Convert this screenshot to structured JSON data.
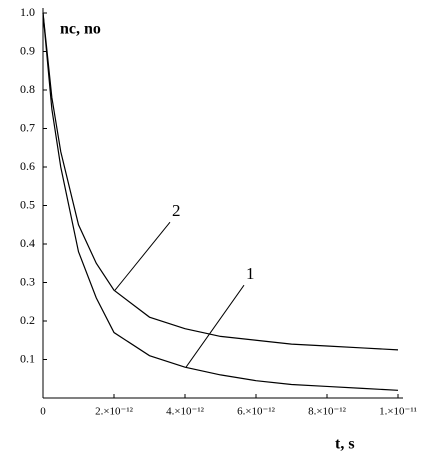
{
  "chart_data": {
    "type": "line",
    "y_label": "nc, no",
    "x_label": "t, s",
    "x": [
      0,
      2.5e-13,
      5e-13,
      1e-12,
      1.5e-12,
      2e-12,
      3e-12,
      4e-12,
      5e-12,
      6e-12,
      7e-12,
      8e-12,
      9e-12,
      1e-11
    ],
    "series": [
      {
        "name": "1",
        "color": "#000000",
        "values": [
          1.0,
          0.75,
          0.6,
          0.38,
          0.26,
          0.17,
          0.11,
          0.08,
          0.06,
          0.045,
          0.035,
          0.03,
          0.025,
          0.02
        ]
      },
      {
        "name": "2",
        "color": "#000000",
        "values": [
          1.0,
          0.78,
          0.64,
          0.45,
          0.35,
          0.28,
          0.21,
          0.18,
          0.16,
          0.15,
          0.14,
          0.135,
          0.13,
          0.125
        ]
      }
    ],
    "xlim": [
      0,
      1e-11
    ],
    "ylim": [
      0,
      1
    ],
    "xticks": [
      0,
      {
        "value": 2e-12,
        "label": "2.×10⁻¹²"
      },
      {
        "value": 4e-12,
        "label": "4.×10⁻¹²"
      },
      {
        "value": 6e-12,
        "label": "6.×10⁻¹²"
      },
      {
        "value": 8e-12,
        "label": "8.×10⁻¹²"
      },
      {
        "value": 1e-11,
        "label": "1.×10⁻¹¹"
      }
    ],
    "yticks": [
      0.1,
      0.2,
      0.3,
      0.4,
      0.5,
      0.6,
      0.7,
      0.8,
      0.9,
      {
        "value": 1,
        "label": "1.0"
      }
    ],
    "grid": false
  }
}
